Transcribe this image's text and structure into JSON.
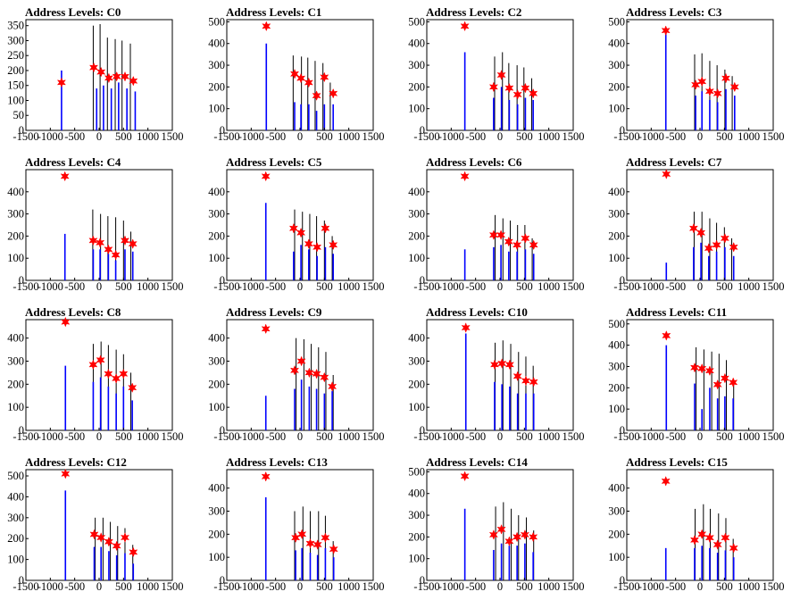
{
  "chart_data": [
    {
      "type": "bar",
      "title": "Address Levels: C0",
      "xlim": [
        -1500,
        1500
      ],
      "ylim": [
        0,
        370
      ],
      "yticks": [
        0,
        50,
        100,
        150,
        200,
        250,
        300,
        350
      ],
      "xticks": [
        -1500,
        -1000,
        -500,
        0,
        500,
        1000,
        1500
      ],
      "black_x": [
        -120,
        20,
        170,
        330,
        470,
        640
      ],
      "black_y": [
        350,
        355,
        310,
        305,
        300,
        290
      ],
      "blue_x": [
        -770,
        -50,
        90,
        250,
        400,
        570,
        740
      ],
      "blue_y": [
        200,
        140,
        150,
        140,
        160,
        140,
        130
      ],
      "peaks_x": [
        -770,
        -110,
        40,
        200,
        360,
        530,
        700
      ],
      "peaks_y": [
        160,
        210,
        195,
        175,
        180,
        180,
        165
      ]
    },
    {
      "type": "bar",
      "title": "Address Levels: C1",
      "xlim": [
        -1500,
        1500
      ],
      "ylim": [
        0,
        510
      ],
      "yticks": [
        0,
        100,
        200,
        300,
        400,
        500
      ],
      "xticks": [
        -1500,
        -1000,
        -500,
        0,
        500,
        1000,
        1500
      ],
      "black_x": [
        -140,
        30,
        160,
        310,
        470,
        620
      ],
      "black_y": [
        345,
        340,
        335,
        320,
        310,
        220
      ],
      "blue_x": [
        -690,
        -110,
        20,
        180,
        340,
        500,
        680
      ],
      "blue_y": [
        400,
        130,
        120,
        120,
        90,
        120,
        120
      ],
      "peaks_x": [
        -690,
        -110,
        20,
        180,
        340,
        500,
        680
      ],
      "peaks_y": [
        480,
        260,
        240,
        220,
        160,
        245,
        170
      ]
    },
    {
      "type": "bar",
      "title": "Address Levels: C2",
      "xlim": [
        -1500,
        1500
      ],
      "ylim": [
        0,
        510
      ],
      "yticks": [
        0,
        100,
        200,
        300,
        400,
        500
      ],
      "xticks": [
        -1500,
        -1000,
        -500,
        0,
        500,
        1000,
        1500
      ],
      "black_x": [
        -110,
        50,
        180,
        350,
        490,
        650
      ],
      "black_y": [
        340,
        360,
        310,
        300,
        290,
        240
      ],
      "blue_x": [
        -720,
        -130,
        30,
        190,
        360,
        520,
        680
      ],
      "blue_y": [
        360,
        150,
        200,
        140,
        120,
        150,
        140
      ],
      "peaks_x": [
        -720,
        -130,
        30,
        190,
        360,
        520,
        680
      ],
      "peaks_y": [
        480,
        200,
        255,
        195,
        165,
        195,
        170
      ]
    },
    {
      "type": "bar",
      "title": "Address Levels: C3",
      "xlim": [
        -1500,
        1500
      ],
      "ylim": [
        0,
        510
      ],
      "yticks": [
        0,
        100,
        200,
        300,
        400,
        500
      ],
      "xticks": [
        -1500,
        -1000,
        -500,
        0,
        500,
        1000,
        1500
      ],
      "black_x": [
        -110,
        40,
        200,
        350,
        510,
        660
      ],
      "black_y": [
        350,
        355,
        320,
        300,
        280,
        250
      ],
      "blue_x": [
        -700,
        -90,
        40,
        200,
        360,
        530,
        710
      ],
      "blue_y": [
        450,
        160,
        180,
        140,
        130,
        190,
        160
      ],
      "peaks_x": [
        -700,
        -90,
        40,
        200,
        360,
        530,
        710
      ],
      "peaks_y": [
        460,
        210,
        225,
        180,
        170,
        240,
        200
      ]
    },
    {
      "type": "bar",
      "title": "Address Levels: C4",
      "xlim": [
        -1500,
        1500
      ],
      "ylim": [
        0,
        500
      ],
      "yticks": [
        0,
        100,
        200,
        300,
        400
      ],
      "xticks": [
        -1500,
        -1000,
        -500,
        0,
        500,
        1000,
        1500
      ],
      "black_x": [
        -130,
        30,
        180,
        340,
        500,
        650
      ],
      "black_y": [
        320,
        300,
        290,
        285,
        270,
        220
      ],
      "blue_x": [
        -700,
        -120,
        20,
        190,
        340,
        530,
        690
      ],
      "blue_y": [
        210,
        140,
        140,
        120,
        90,
        140,
        130
      ],
      "peaks_x": [
        -700,
        -120,
        20,
        190,
        340,
        530,
        690
      ],
      "peaks_y": [
        470,
        180,
        170,
        140,
        115,
        180,
        165
      ]
    },
    {
      "type": "bar",
      "title": "Address Levels: C5",
      "xlim": [
        -1500,
        1500
      ],
      "ylim": [
        0,
        500
      ],
      "yticks": [
        0,
        100,
        200,
        300,
        400
      ],
      "xticks": [
        -1500,
        -1000,
        -500,
        0,
        500,
        1000,
        1500
      ],
      "black_x": [
        -110,
        50,
        200,
        340,
        500,
        660
      ],
      "black_y": [
        320,
        310,
        300,
        290,
        270,
        200
      ],
      "blue_x": [
        -700,
        -130,
        20,
        180,
        350,
        520,
        680
      ],
      "blue_y": [
        350,
        130,
        160,
        140,
        110,
        150,
        120
      ],
      "peaks_x": [
        -700,
        -130,
        20,
        180,
        350,
        520,
        680
      ],
      "peaks_y": [
        470,
        235,
        215,
        165,
        150,
        235,
        160
      ]
    },
    {
      "type": "bar",
      "title": "Address Levels: C6",
      "xlim": [
        -1500,
        1500
      ],
      "ylim": [
        0,
        500
      ],
      "yticks": [
        0,
        100,
        200,
        300,
        400
      ],
      "xticks": [
        -1500,
        -1000,
        -500,
        0,
        500,
        1000,
        1500
      ],
      "black_x": [
        -100,
        60,
        210,
        360,
        510,
        660
      ],
      "black_y": [
        295,
        280,
        270,
        250,
        250,
        190
      ],
      "blue_x": [
        -720,
        -130,
        20,
        180,
        350,
        520,
        690
      ],
      "blue_y": [
        140,
        150,
        160,
        130,
        130,
        140,
        120
      ],
      "peaks_x": [
        -720,
        -130,
        20,
        180,
        350,
        520,
        690
      ],
      "peaks_y": [
        470,
        205,
        205,
        175,
        160,
        190,
        160
      ]
    },
    {
      "type": "bar",
      "title": "Address Levels: C7",
      "xlim": [
        -1500,
        1500
      ],
      "ylim": [
        0,
        500
      ],
      "yticks": [
        0,
        100,
        200,
        300,
        400
      ],
      "xticks": [
        -1500,
        -1000,
        -500,
        0,
        500,
        1000,
        1500
      ],
      "black_x": [
        -120,
        40,
        200,
        340,
        500,
        650
      ],
      "black_y": [
        310,
        310,
        280,
        260,
        240,
        190
      ],
      "blue_x": [
        -690,
        -130,
        20,
        180,
        340,
        510,
        690
      ],
      "blue_y": [
        80,
        150,
        170,
        110,
        130,
        150,
        110
      ],
      "peaks_x": [
        -690,
        -130,
        20,
        180,
        340,
        510,
        690
      ],
      "peaks_y": [
        480,
        235,
        215,
        145,
        160,
        190,
        150
      ]
    },
    {
      "type": "bar",
      "title": "Address Levels: C8",
      "xlim": [
        -1500,
        1500
      ],
      "ylim": [
        0,
        480
      ],
      "yticks": [
        0,
        100,
        200,
        300,
        400
      ],
      "xticks": [
        -1500,
        -1000,
        -500,
        0,
        500,
        1000,
        1500
      ],
      "black_x": [
        -120,
        40,
        190,
        350,
        500,
        650
      ],
      "black_y": [
        375,
        385,
        370,
        350,
        330,
        250
      ],
      "blue_x": [
        -690,
        -120,
        30,
        190,
        350,
        500,
        680
      ],
      "blue_y": [
        280,
        210,
        230,
        190,
        160,
        190,
        130
      ],
      "peaks_x": [
        -690,
        -120,
        30,
        190,
        350,
        500,
        680
      ],
      "peaks_y": [
        470,
        285,
        305,
        245,
        225,
        245,
        185
      ]
    },
    {
      "type": "bar",
      "title": "Address Levels: C9",
      "xlim": [
        -1500,
        1500
      ],
      "ylim": [
        0,
        480
      ],
      "yticks": [
        0,
        100,
        200,
        300,
        400
      ],
      "xticks": [
        -1500,
        -1000,
        -500,
        0,
        500,
        1000,
        1500
      ],
      "black_x": [
        -80,
        80,
        230,
        380,
        530,
        680
      ],
      "black_y": [
        400,
        395,
        375,
        360,
        340,
        240
      ],
      "blue_x": [
        -700,
        -110,
        30,
        190,
        340,
        500,
        660
      ],
      "blue_y": [
        150,
        180,
        220,
        190,
        180,
        160,
        170
      ],
      "peaks_x": [
        -700,
        -110,
        30,
        190,
        340,
        500,
        660
      ],
      "peaks_y": [
        440,
        260,
        300,
        250,
        245,
        230,
        190
      ]
    },
    {
      "type": "bar",
      "title": "Address Levels: C10",
      "xlim": [
        -1500,
        1500
      ],
      "ylim": [
        0,
        480
      ],
      "yticks": [
        0,
        100,
        200,
        300,
        400
      ],
      "xticks": [
        -1500,
        -1000,
        -500,
        0,
        500,
        1000,
        1500
      ],
      "black_x": [
        -100,
        60,
        220,
        380,
        530,
        680
      ],
      "black_y": [
        380,
        390,
        375,
        340,
        320,
        280
      ],
      "blue_x": [
        -700,
        -110,
        40,
        200,
        360,
        530,
        690
      ],
      "blue_y": [
        420,
        210,
        200,
        190,
        160,
        160,
        160
      ],
      "peaks_x": [
        -700,
        -110,
        40,
        200,
        360,
        530,
        690
      ],
      "peaks_y": [
        445,
        285,
        290,
        285,
        235,
        215,
        210
      ]
    },
    {
      "type": "bar",
      "title": "Address Levels: C11",
      "xlim": [
        -1500,
        1500
      ],
      "ylim": [
        0,
        520
      ],
      "yticks": [
        0,
        100,
        200,
        300,
        400,
        500
      ],
      "xticks": [
        -1500,
        -1000,
        -500,
        0,
        500,
        1000,
        1500
      ],
      "black_x": [
        -80,
        80,
        240,
        390,
        540,
        690
      ],
      "black_y": [
        390,
        380,
        370,
        360,
        330,
        240
      ],
      "blue_x": [
        -690,
        -110,
        40,
        200,
        360,
        510,
        680
      ],
      "blue_y": [
        400,
        220,
        100,
        200,
        150,
        160,
        150
      ],
      "peaks_x": [
        -690,
        -110,
        40,
        200,
        360,
        510,
        680
      ],
      "peaks_y": [
        445,
        295,
        290,
        280,
        215,
        245,
        225
      ]
    },
    {
      "type": "bar",
      "title": "Address Levels: C12",
      "xlim": [
        -1500,
        1500
      ],
      "ylim": [
        0,
        530
      ],
      "yticks": [
        0,
        100,
        200,
        300,
        400,
        500
      ],
      "xticks": [
        -1500,
        -1000,
        -500,
        0,
        500,
        1000,
        1500
      ],
      "black_x": [
        -80,
        80,
        230,
        380,
        530,
        690
      ],
      "black_y": [
        300,
        300,
        280,
        260,
        250,
        170
      ],
      "blue_x": [
        -690,
        -100,
        40,
        200,
        360,
        530,
        700
      ],
      "blue_y": [
        430,
        160,
        160,
        140,
        120,
        130,
        80
      ],
      "peaks_x": [
        -690,
        -100,
        40,
        200,
        360,
        530,
        700
      ],
      "peaks_y": [
        510,
        220,
        205,
        185,
        165,
        205,
        135
      ]
    },
    {
      "type": "bar",
      "title": "Address Levels: C13",
      "xlim": [
        -1500,
        1500
      ],
      "ylim": [
        0,
        480
      ],
      "yticks": [
        0,
        100,
        200,
        300,
        400
      ],
      "xticks": [
        -1500,
        -1000,
        -500,
        0,
        500,
        1000,
        1500
      ],
      "black_x": [
        -110,
        60,
        210,
        380,
        520,
        680
      ],
      "black_y": [
        300,
        320,
        300,
        300,
        280,
        170
      ],
      "blue_x": [
        -700,
        -90,
        40,
        210,
        360,
        520,
        690
      ],
      "blue_y": [
        360,
        130,
        140,
        120,
        110,
        140,
        100
      ],
      "peaks_x": [
        -700,
        -90,
        40,
        210,
        360,
        520,
        690
      ],
      "peaks_y": [
        450,
        185,
        200,
        160,
        155,
        185,
        135
      ]
    },
    {
      "type": "bar",
      "title": "Address Levels: C14",
      "xlim": [
        -1500,
        1500
      ],
      "ylim": [
        0,
        510
      ],
      "yticks": [
        0,
        100,
        200,
        300,
        400,
        500
      ],
      "xticks": [
        -1500,
        -1000,
        -500,
        0,
        500,
        1000,
        1500
      ],
      "black_x": [
        -90,
        70,
        230,
        380,
        540,
        690
      ],
      "black_y": [
        340,
        360,
        330,
        300,
        290,
        230
      ],
      "blue_x": [
        -720,
        -130,
        30,
        190,
        350,
        510,
        680
      ],
      "blue_y": [
        330,
        140,
        170,
        160,
        160,
        170,
        130
      ],
      "peaks_x": [
        -720,
        -130,
        30,
        190,
        350,
        510,
        680
      ],
      "peaks_y": [
        480,
        210,
        235,
        180,
        200,
        210,
        200
      ]
    },
    {
      "type": "bar",
      "title": "Address Levels: C15",
      "xlim": [
        -1500,
        1500
      ],
      "ylim": [
        0,
        480
      ],
      "yticks": [
        0,
        100,
        200,
        300,
        400
      ],
      "xticks": [
        -1500,
        -1000,
        -500,
        0,
        500,
        1000,
        1500
      ],
      "black_x": [
        -100,
        70,
        210,
        380,
        530,
        680
      ],
      "black_y": [
        310,
        330,
        310,
        290,
        270,
        180
      ],
      "blue_x": [
        -700,
        -110,
        40,
        200,
        360,
        520,
        690
      ],
      "blue_y": [
        140,
        140,
        150,
        140,
        120,
        130,
        100
      ],
      "peaks_x": [
        -700,
        -110,
        40,
        200,
        360,
        520,
        690
      ],
      "peaks_y": [
        430,
        175,
        200,
        185,
        155,
        185,
        140
      ]
    }
  ]
}
